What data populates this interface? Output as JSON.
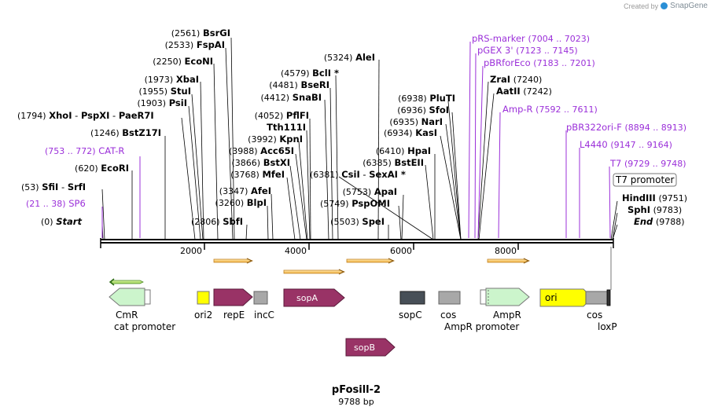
{
  "credit": {
    "prefix": "Created by",
    "brand": "SnapGene",
    "logo_icon": "snapgene-logo-icon"
  },
  "plasmid": {
    "name": "pFosill-2",
    "size": "9788 bp"
  },
  "axis_ticks": [
    "2000",
    "4000",
    "6000",
    "8000"
  ],
  "sites": [
    {
      "name": "BsrGI",
      "pos": "(2561)"
    },
    {
      "name": "FspAI",
      "pos": "(2533)"
    },
    {
      "name": "EcoNI",
      "pos": "(2250)"
    },
    {
      "name": "XbaI",
      "pos": "(1973)"
    },
    {
      "name": "StuI",
      "pos": "(1955)"
    },
    {
      "name": "PsiI",
      "pos": "(1903)"
    },
    {
      "name": "XhoI",
      "pos": "(1794)"
    },
    {
      "name": "PspXI",
      "pos": ""
    },
    {
      "name": "PaeR7I",
      "pos": ""
    },
    {
      "name": "BstZ17I",
      "pos": "(1246)"
    },
    {
      "name": "EcoRI",
      "pos": "(620)"
    },
    {
      "name": "SfiI",
      "pos": "(53)"
    },
    {
      "name": "SrfI",
      "pos": ""
    },
    {
      "name": "Start",
      "pos": "(0)"
    },
    {
      "name": "BclI *",
      "pos": "(4579)"
    },
    {
      "name": "BseRI",
      "pos": "(4481)"
    },
    {
      "name": "SnaBI",
      "pos": "(4412)"
    },
    {
      "name": "PflFI",
      "pos": "(4052)"
    },
    {
      "name": "Tth111I",
      "pos": ""
    },
    {
      "name": "KpnI",
      "pos": "(3992)"
    },
    {
      "name": "Acc65I",
      "pos": "(3988)"
    },
    {
      "name": "BstXI",
      "pos": "(3866)"
    },
    {
      "name": "MfeI",
      "pos": "(3768)"
    },
    {
      "name": "AfeI",
      "pos": "(3347)"
    },
    {
      "name": "BlpI",
      "pos": "(3260)"
    },
    {
      "name": "SbfI",
      "pos": "(2806)"
    },
    {
      "name": "AleI",
      "pos": "(5324)"
    },
    {
      "name": "CsiI",
      "pos": "(6381)"
    },
    {
      "name": "SexAI *",
      "pos": ""
    },
    {
      "name": "ApaI",
      "pos": "(5753)"
    },
    {
      "name": "PspOMI",
      "pos": "(5749)"
    },
    {
      "name": "SpeI",
      "pos": "(5503)"
    },
    {
      "name": "PluTI",
      "pos": "(6938)"
    },
    {
      "name": "SfoI",
      "pos": "(6936)"
    },
    {
      "name": "NarI",
      "pos": "(6935)"
    },
    {
      "name": "KasI",
      "pos": "(6934)"
    },
    {
      "name": "HpaI",
      "pos": "(6410)"
    },
    {
      "name": "BstEII",
      "pos": "(6385)"
    },
    {
      "name": "ZraI",
      "pos": "(7240)"
    },
    {
      "name": "AatII",
      "pos": "(7242)"
    },
    {
      "name": "HindIII",
      "pos": "(9751)"
    },
    {
      "name": "SphI",
      "pos": "(9783)"
    },
    {
      "name": "End",
      "pos": "(9788)"
    }
  ],
  "primers": [
    {
      "name": "CAT-R",
      "range": "(753 .. 772)"
    },
    {
      "name": "SP6",
      "range": "(21 .. 38)"
    },
    {
      "name": "pRS-marker",
      "range": "(7004 .. 7023)"
    },
    {
      "name": "pGEX 3'",
      "range": "(7123 .. 7145)"
    },
    {
      "name": "pBRforEco",
      "range": "(7183 .. 7201)"
    },
    {
      "name": "Amp-R",
      "range": "(7592 .. 7611)"
    },
    {
      "name": "pBR322ori-F",
      "range": "(8894 .. 8913)"
    },
    {
      "name": "L4440",
      "range": "(9147 .. 9164)"
    },
    {
      "name": "T7",
      "range": "(9729 .. 9748)"
    },
    {
      "name": "T7 promoter",
      "range": ""
    }
  ],
  "features": [
    {
      "name": "CmR",
      "color": "#ccf5cc"
    },
    {
      "name": "cat promoter",
      "color": "#ffffff"
    },
    {
      "name": "ori2",
      "color": "#ffff00"
    },
    {
      "name": "repE",
      "color": "#993366"
    },
    {
      "name": "incC",
      "color": "#a8a8a8"
    },
    {
      "name": "sopA",
      "color": "#993366"
    },
    {
      "name": "sopB",
      "color": "#993366"
    },
    {
      "name": "sopC",
      "color": "#474f57"
    },
    {
      "name": "cos",
      "color": "#a8a8a8"
    },
    {
      "name": "AmpR promoter",
      "color": "#ffffff"
    },
    {
      "name": "AmpR",
      "color": "#ccf5cc"
    },
    {
      "name": "ori",
      "color": "#ffff00"
    },
    {
      "name": "cos",
      "color": "#a8a8a8"
    },
    {
      "name": "loxP",
      "color": "#ffffff"
    }
  ],
  "colors": {
    "primer": "#9b30d9",
    "orf": "#f0b040",
    "backbone": "#000000"
  }
}
